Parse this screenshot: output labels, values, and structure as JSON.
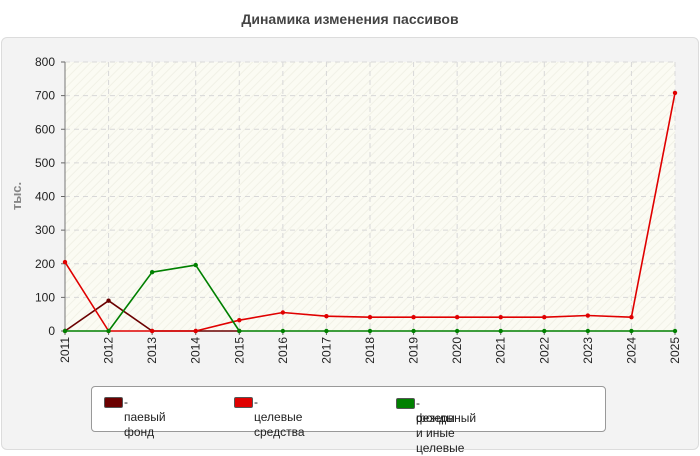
{
  "chart_data": {
    "type": "line",
    "title": "Динамика изменения пассивов",
    "ylabel": "тыс.",
    "xlabel": "",
    "ylim": [
      0,
      800
    ],
    "yticks": [
      "0",
      "100",
      "200",
      "300",
      "400",
      "500",
      "600",
      "700",
      "800"
    ],
    "x": [
      "2011",
      "2012",
      "2013",
      "2014",
      "2015",
      "2016",
      "2017",
      "2018",
      "2019",
      "2020",
      "2021",
      "2022",
      "2023",
      "2024",
      "2025"
    ],
    "grid": true,
    "legend_position": "bottom",
    "series": [
      {
        "name": "- паевый фонд",
        "color": "#6b0000",
        "values": [
          0,
          90,
          0,
          0,
          0,
          null,
          null,
          null,
          null,
          null,
          null,
          null,
          null,
          null,
          null
        ]
      },
      {
        "name": "- целевые средства",
        "color": "#e00000",
        "values": [
          205,
          0,
          0,
          0,
          32,
          55,
          44,
          41,
          41,
          41,
          41,
          41,
          46,
          41,
          708
        ]
      },
      {
        "name": "- резервный и иные целевые фонды",
        "color": "#008000",
        "values": [
          0,
          0,
          175,
          196,
          0,
          0,
          0,
          0,
          0,
          0,
          0,
          0,
          0,
          0,
          0
        ]
      }
    ]
  },
  "legend": {
    "items": [
      {
        "line1": "- паевый фонд",
        "line2": ""
      },
      {
        "line1": "- целевые средства",
        "line2": ""
      },
      {
        "line1": "- резервный и иные целевые",
        "line2": "фонды"
      }
    ]
  }
}
